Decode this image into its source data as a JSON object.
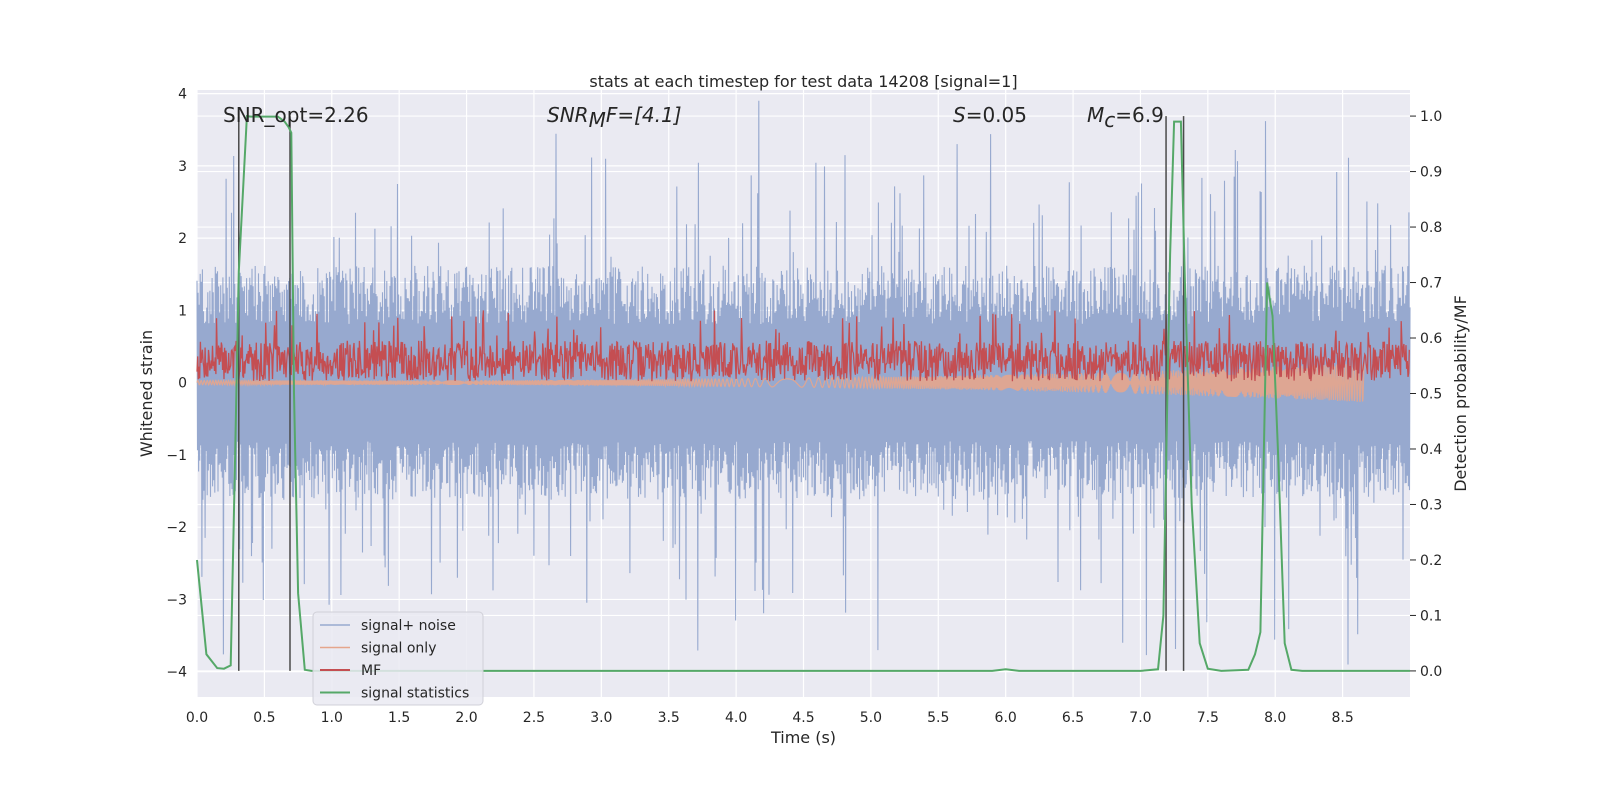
{
  "chart_data": {
    "type": "line",
    "title": "stats at each timestep for test data 14208 [signal=1]",
    "xlabel": "Time (s)",
    "ylabel": "Whitened strain",
    "y2label": "Detection probability/MF",
    "xlim": [
      0.0,
      9.0
    ],
    "ylim": [
      -4.35,
      4.05
    ],
    "y2lim": [
      -0.047,
      1.047
    ],
    "xticks": [
      0.0,
      0.5,
      1.0,
      1.5,
      2.0,
      2.5,
      3.0,
      3.5,
      4.0,
      4.5,
      5.0,
      5.5,
      6.0,
      6.5,
      7.0,
      7.5,
      8.0,
      8.5
    ],
    "xtick_labels": [
      "0.0",
      "0.5",
      "1.0",
      "1.5",
      "2.0",
      "2.5",
      "3.0",
      "3.5",
      "4.0",
      "4.5",
      "5.0",
      "5.5",
      "6.0",
      "6.5",
      "7.0",
      "7.5",
      "8.0",
      "8.5"
    ],
    "yticks": [
      -4,
      -3,
      -2,
      -1,
      0,
      1,
      2,
      3,
      4
    ],
    "ytick_labels": [
      "−4",
      "−3",
      "−2",
      "−1",
      "0",
      "1",
      "2",
      "3",
      "4"
    ],
    "y2ticks": [
      0.0,
      0.1,
      0.2,
      0.3,
      0.4,
      0.5,
      0.6,
      0.7,
      0.8,
      0.9,
      1.0
    ],
    "y2tick_labels": [
      "0.0",
      "0.1",
      "0.2",
      "0.3",
      "0.4",
      "0.5",
      "0.6",
      "0.7",
      "0.8",
      "0.9",
      "1.0"
    ],
    "grid": true,
    "legend_position": "lower-left",
    "annotations": {
      "snr_opt": "SNR_opt=2.26",
      "snr_mf_main": "SNR",
      "snr_mf_sub": "M",
      "snr_mf_rest": "F=[4.1]",
      "s_main": "S",
      "s_rest": "=0.05",
      "mc_main": "M",
      "mc_sub": "c",
      "mc_rest": "=6.9"
    },
    "markers_x": [
      0.31,
      0.69,
      7.19,
      7.32
    ],
    "series": [
      {
        "name": "signal+ noise",
        "axis": "left",
        "color": "#97a9cf",
        "envelope": {
          "sample_step": 0.004,
          "typical_amplitude": 1.35,
          "max_amplitude": 3.9,
          "seed": 14208
        }
      },
      {
        "name": "signal only",
        "axis": "left",
        "color": "#e5a58c",
        "chirp": {
          "start": 0.0,
          "end": 8.66,
          "amplitude_start": 0.03,
          "amplitude_end": 0.27
        }
      },
      {
        "name": "MF",
        "axis": "left",
        "color": "#c44e52",
        "band": {
          "sample_step": 0.005,
          "center": 0.3,
          "spread": 0.28,
          "max": 1.0,
          "min": 0.02,
          "seed": 7
        }
      },
      {
        "name": "signal statistics",
        "axis": "right",
        "color": "#55a868",
        "x": [
          0.0,
          0.07,
          0.15,
          0.2,
          0.25,
          0.28,
          0.31,
          0.37,
          0.4,
          0.45,
          0.5,
          0.55,
          0.6,
          0.65,
          0.68,
          0.7,
          0.72,
          0.75,
          0.8,
          0.85,
          1.0,
          2.0,
          3.0,
          4.0,
          5.0,
          5.9,
          6.0,
          6.1,
          7.0,
          7.13,
          7.17,
          7.2,
          7.22,
          7.25,
          7.3,
          7.33,
          7.38,
          7.44,
          7.5,
          7.6,
          7.8,
          7.85,
          7.89,
          7.94,
          7.98,
          8.02,
          8.07,
          8.12,
          8.2,
          8.5,
          9.0
        ],
        "values": [
          0.2,
          0.03,
          0.005,
          0.004,
          0.01,
          0.35,
          0.72,
          1.0,
          0.999,
          0.999,
          0.999,
          0.999,
          0.999,
          0.99,
          0.98,
          0.97,
          0.5,
          0.14,
          0.002,
          0.0,
          0.0,
          0.0,
          0.0,
          0.0,
          0.0,
          0.0,
          0.003,
          0.0,
          0.0,
          0.003,
          0.1,
          0.5,
          0.75,
          0.99,
          0.99,
          0.7,
          0.3,
          0.05,
          0.004,
          0.0,
          0.002,
          0.03,
          0.07,
          0.7,
          0.64,
          0.4,
          0.05,
          0.002,
          0.0,
          0.0,
          0.0
        ]
      }
    ]
  }
}
